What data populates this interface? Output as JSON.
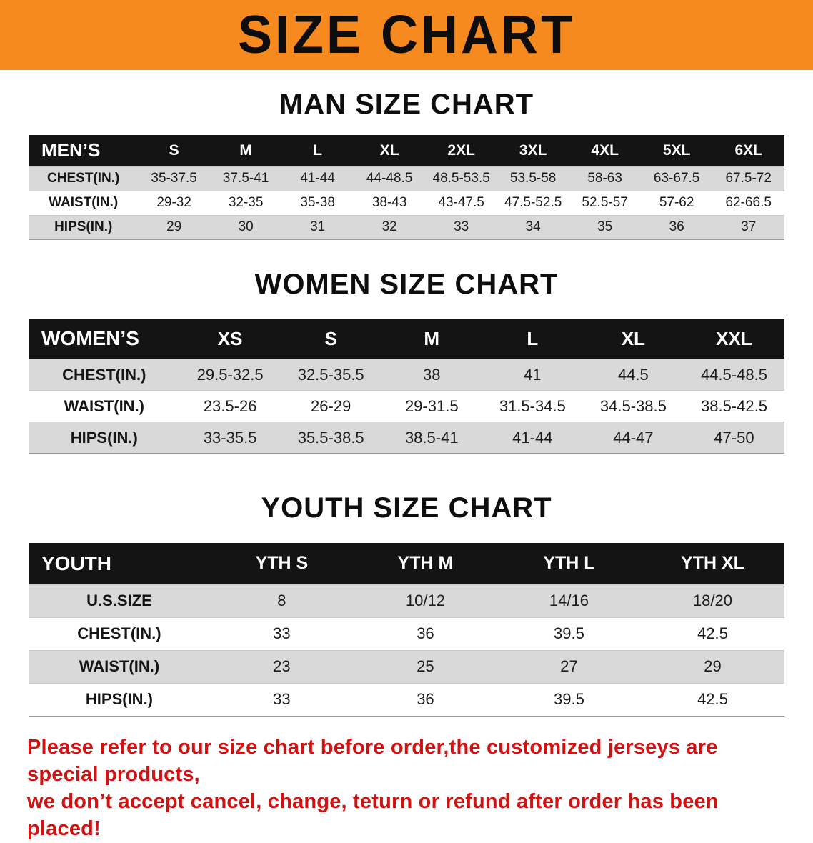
{
  "banner": {
    "title": "SIZE CHART",
    "bg_color": "#f68a1e"
  },
  "colors": {
    "header_bg": "#141414",
    "row_alt": "#d9d9d9",
    "footer_text": "#cf1212"
  },
  "men": {
    "title": "MAN SIZE CHART",
    "label": "MEN’S",
    "sizes": [
      "S",
      "M",
      "L",
      "XL",
      "2XL",
      "3XL",
      "4XL",
      "5XL",
      "6XL"
    ],
    "rows": [
      {
        "label": "CHEST(IN.)",
        "values": [
          "35-37.5",
          "37.5-41",
          "41-44",
          "44-48.5",
          "48.5-53.5",
          "53.5-58",
          "58-63",
          "63-67.5",
          "67.5-72"
        ]
      },
      {
        "label": "WAIST(IN.)",
        "values": [
          "29-32",
          "32-35",
          "35-38",
          "38-43",
          "43-47.5",
          "47.5-52.5",
          "52.5-57",
          "57-62",
          "62-66.5"
        ]
      },
      {
        "label": "HIPS(IN.)",
        "values": [
          "29",
          "30",
          "31",
          "32",
          "33",
          "34",
          "35",
          "36",
          "37"
        ]
      }
    ]
  },
  "women": {
    "title": "WOMEN SIZE CHART",
    "label": "WOMEN’S",
    "sizes": [
      "XS",
      "S",
      "M",
      "L",
      "XL",
      "XXL"
    ],
    "rows": [
      {
        "label": "CHEST(IN.)",
        "values": [
          "29.5-32.5",
          "32.5-35.5",
          "38",
          "41",
          "44.5",
          "44.5-48.5"
        ]
      },
      {
        "label": "WAIST(IN.)",
        "values": [
          "23.5-26",
          "26-29",
          "29-31.5",
          "31.5-34.5",
          "34.5-38.5",
          "38.5-42.5"
        ]
      },
      {
        "label": "HIPS(IN.)",
        "values": [
          "33-35.5",
          "35.5-38.5",
          "38.5-41",
          "41-44",
          "44-47",
          "47-50"
        ]
      }
    ]
  },
  "youth": {
    "title": "YOUTH SIZE CHART",
    "label": "YOUTH",
    "sizes": [
      "YTH S",
      "YTH M",
      "YTH L",
      "YTH XL"
    ],
    "rows": [
      {
        "label": "U.S.SIZE",
        "values": [
          "8",
          "10/12",
          "14/16",
          "18/20"
        ]
      },
      {
        "label": "CHEST(IN.)",
        "values": [
          "33",
          "36",
          "39.5",
          "42.5"
        ]
      },
      {
        "label": "WAIST(IN.)",
        "values": [
          "23",
          "25",
          "27",
          "29"
        ]
      },
      {
        "label": "HIPS(IN.)",
        "values": [
          "33",
          "36",
          "39.5",
          "42.5"
        ]
      }
    ]
  },
  "footer": {
    "line1": "Please refer to our size chart before order,the customized jerseys are special products,",
    "line2": "we don’t accept cancel, change, teturn or refund after order has been placed!"
  }
}
